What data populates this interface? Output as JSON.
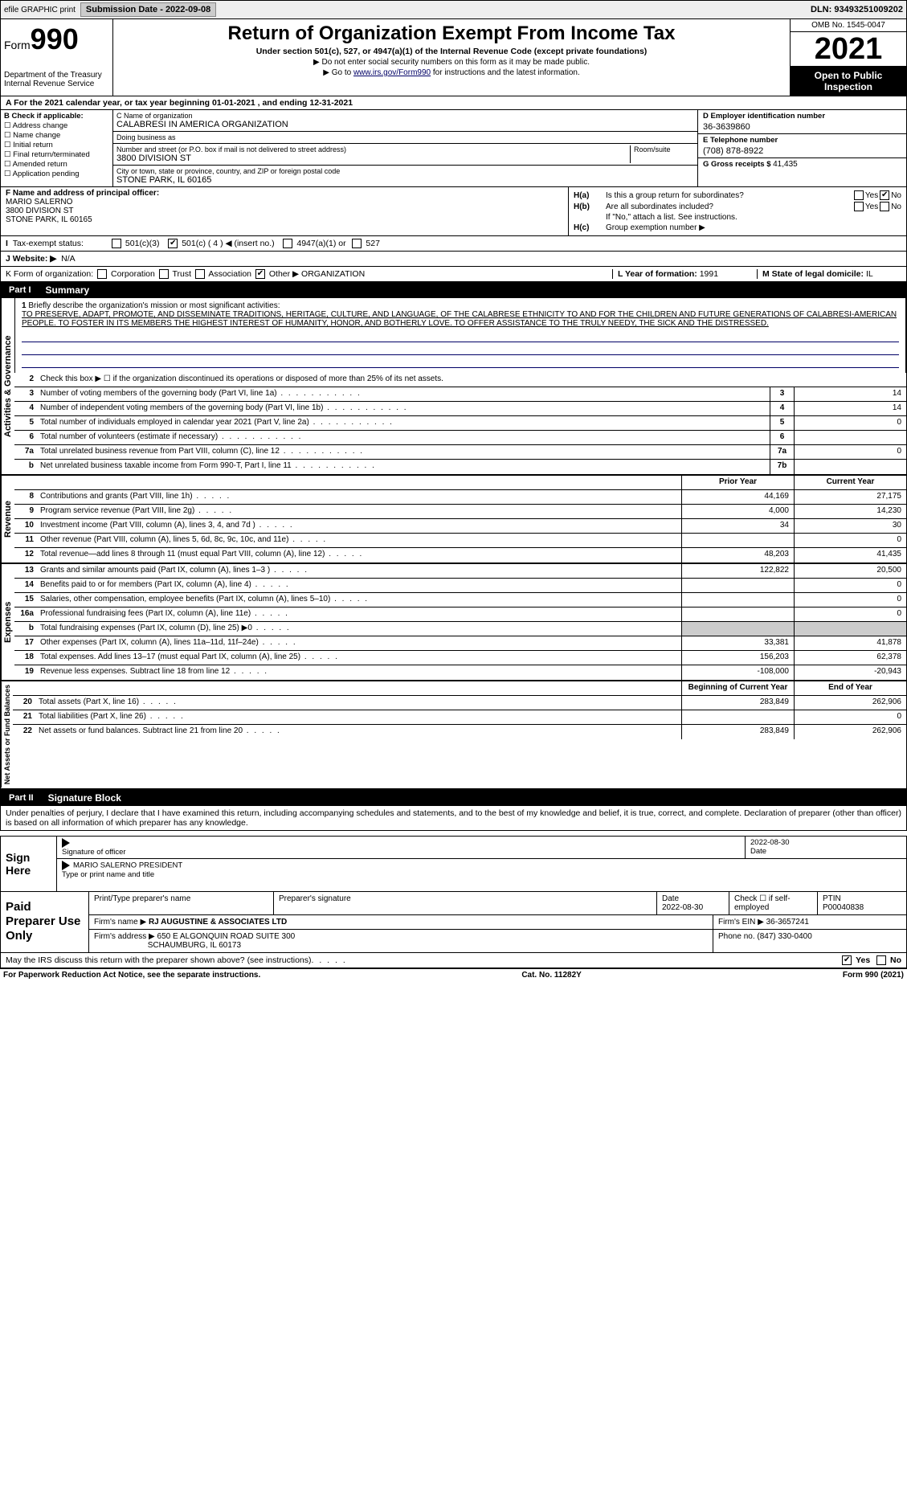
{
  "topbar": {
    "efile": "efile GRAPHIC print",
    "submission_label": "Submission Date - 2022-09-08",
    "dln": "DLN: 93493251009202"
  },
  "header": {
    "form_prefix": "Form",
    "form_number": "990",
    "title": "Return of Organization Exempt From Income Tax",
    "subtitle": "Under section 501(c), 527, or 4947(a)(1) of the Internal Revenue Code (except private foundations)",
    "note1": "▶ Do not enter social security numbers on this form as it may be made public.",
    "note2_pre": "▶ Go to ",
    "note2_link": "www.irs.gov/Form990",
    "note2_post": " for instructions and the latest information.",
    "dept": "Department of the Treasury",
    "irs": "Internal Revenue Service",
    "omb": "OMB No. 1545-0047",
    "year": "2021",
    "open": "Open to Public Inspection"
  },
  "period": {
    "label_a": "A For the 2021 calendar year, or tax year beginning ",
    "begin": "01-01-2021",
    "mid": " , and ending ",
    "end": "12-31-2021"
  },
  "blockB": {
    "label": "B Check if applicable:",
    "opts": [
      "Address change",
      "Name change",
      "Initial return",
      "Final return/terminated",
      "Amended return",
      "Application pending"
    ]
  },
  "blockC": {
    "name_label": "C Name of organization",
    "name": "CALABRESI IN AMERICA ORGANIZATION",
    "dba_label": "Doing business as",
    "dba": "",
    "street_label": "Number and street (or P.O. box if mail is not delivered to street address)",
    "room_label": "Room/suite",
    "street": "3800 DIVISION ST",
    "city_label": "City or town, state or province, country, and ZIP or foreign postal code",
    "city": "STONE PARK, IL  60165"
  },
  "blockD": {
    "ein_label": "D Employer identification number",
    "ein": "36-3639860",
    "phone_label": "E Telephone number",
    "phone": "(708) 878-8922",
    "gross_label": "G Gross receipts $ ",
    "gross": "41,435"
  },
  "blockF": {
    "label": "F Name and address of principal officer:",
    "name": "MARIO SALERNO",
    "street": "3800 DIVISION ST",
    "city": "STONE PARK, IL  60165"
  },
  "blockH": {
    "a_label": "H(a)",
    "a_q": "Is this a group return for subordinates?",
    "a_no_checked": true,
    "b_label": "H(b)",
    "b_q": "Are all subordinates included?",
    "b_note": "If \"No,\" attach a list. See instructions.",
    "c_label": "H(c)",
    "c_q": "Group exemption number ▶"
  },
  "tax_exempt": {
    "label": "Tax-exempt status:",
    "c3": "501(c)(3)",
    "c_other_checked": true,
    "c_other": "501(c) ( 4 ) ◀ (insert no.)",
    "a1": "4947(a)(1) or",
    "s527": "527"
  },
  "website": {
    "label": "J   Website: ▶",
    "val": "N/A"
  },
  "blockK": {
    "label": "K Form of organization:",
    "corp": "Corporation",
    "trust": "Trust",
    "assoc": "Association",
    "other_checked": true,
    "other": "Other ▶",
    "other_val": "ORGANIZATION"
  },
  "blockL": {
    "label": "L Year of formation: ",
    "val": "1991"
  },
  "blockM": {
    "label": "M State of legal domicile: ",
    "val": "IL"
  },
  "part1": {
    "tab": "Part I",
    "title": "Summary"
  },
  "mission": {
    "num": "1",
    "label": "Briefly describe the organization's mission or most significant activities:",
    "text": "TO PRESERVE, ADAPT, PROMOTE, AND DISSEMINATE TRADITIONS, HERITAGE, CULTURE, AND LANGUAGE, OF THE CALABRESE ETHNICITY TO AND FOR THE CHILDREN AND FUTURE GENERATIONS OF CALABRESI-AMERICAN PEOPLE. TO FOSTER IN ITS MEMBERS THE HIGHEST INTEREST OF HUMANITY, HONOR, AND BOTHERLY LOVE. TO OFFER ASSISTANCE TO THE TRULY NEEDY, THE SICK AND THE DISTRESSED."
  },
  "gov": {
    "vert": "Activities & Governance",
    "line2": "Check this box ▶ ☐ if the organization discontinued its operations or disposed of more than 25% of its net assets.",
    "rows": [
      {
        "n": "3",
        "d": "Number of voting members of the governing body (Part VI, line 1a)",
        "box": "3",
        "v": "14"
      },
      {
        "n": "4",
        "d": "Number of independent voting members of the governing body (Part VI, line 1b)",
        "box": "4",
        "v": "14"
      },
      {
        "n": "5",
        "d": "Total number of individuals employed in calendar year 2021 (Part V, line 2a)",
        "box": "5",
        "v": "0"
      },
      {
        "n": "6",
        "d": "Total number of volunteers (estimate if necessary)",
        "box": "6",
        "v": ""
      },
      {
        "n": "7a",
        "d": "Total unrelated business revenue from Part VIII, column (C), line 12",
        "box": "7a",
        "v": "0"
      },
      {
        "n": "b",
        "d": "Net unrelated business taxable income from Form 990-T, Part I, line 11",
        "box": "7b",
        "v": ""
      }
    ]
  },
  "rev": {
    "vert": "Revenue",
    "hdr_prior": "Prior Year",
    "hdr_curr": "Current Year",
    "rows": [
      {
        "n": "8",
        "d": "Contributions and grants (Part VIII, line 1h)",
        "p": "44,169",
        "c": "27,175"
      },
      {
        "n": "9",
        "d": "Program service revenue (Part VIII, line 2g)",
        "p": "4,000",
        "c": "14,230"
      },
      {
        "n": "10",
        "d": "Investment income (Part VIII, column (A), lines 3, 4, and 7d )",
        "p": "34",
        "c": "30"
      },
      {
        "n": "11",
        "d": "Other revenue (Part VIII, column (A), lines 5, 6d, 8c, 9c, 10c, and 11e)",
        "p": "",
        "c": "0"
      },
      {
        "n": "12",
        "d": "Total revenue—add lines 8 through 11 (must equal Part VIII, column (A), line 12)",
        "p": "48,203",
        "c": "41,435"
      }
    ]
  },
  "exp": {
    "vert": "Expenses",
    "rows": [
      {
        "n": "13",
        "d": "Grants and similar amounts paid (Part IX, column (A), lines 1–3 )",
        "p": "122,822",
        "c": "20,500"
      },
      {
        "n": "14",
        "d": "Benefits paid to or for members (Part IX, column (A), line 4)",
        "p": "",
        "c": "0"
      },
      {
        "n": "15",
        "d": "Salaries, other compensation, employee benefits (Part IX, column (A), lines 5–10)",
        "p": "",
        "c": "0"
      },
      {
        "n": "16a",
        "d": "Professional fundraising fees (Part IX, column (A), line 11e)",
        "p": "",
        "c": "0"
      },
      {
        "n": "b",
        "d": "Total fundraising expenses (Part IX, column (D), line 25) ▶0",
        "p": "shade",
        "c": "shade"
      },
      {
        "n": "17",
        "d": "Other expenses (Part IX, column (A), lines 11a–11d, 11f–24e)",
        "p": "33,381",
        "c": "41,878"
      },
      {
        "n": "18",
        "d": "Total expenses. Add lines 13–17 (must equal Part IX, column (A), line 25)",
        "p": "156,203",
        "c": "62,378"
      },
      {
        "n": "19",
        "d": "Revenue less expenses. Subtract line 18 from line 12",
        "p": "-108,000",
        "c": "-20,943"
      }
    ]
  },
  "net": {
    "vert": "Net Assets or Fund Balances",
    "hdr_begin": "Beginning of Current Year",
    "hdr_end": "End of Year",
    "rows": [
      {
        "n": "20",
        "d": "Total assets (Part X, line 16)",
        "p": "283,849",
        "c": "262,906"
      },
      {
        "n": "21",
        "d": "Total liabilities (Part X, line 26)",
        "p": "",
        "c": "0"
      },
      {
        "n": "22",
        "d": "Net assets or fund balances. Subtract line 21 from line 20",
        "p": "283,849",
        "c": "262,906"
      }
    ]
  },
  "part2": {
    "tab": "Part II",
    "title": "Signature Block"
  },
  "sig_decl": "Under penalties of perjury, I declare that I have examined this return, including accompanying schedules and statements, and to the best of my knowledge and belief, it is true, correct, and complete. Declaration of preparer (other than officer) is based on all information of which preparer has any knowledge.",
  "sign": {
    "label": "Sign Here",
    "sig_label": "Signature of officer",
    "date_val": "2022-08-30",
    "date_label": "Date",
    "name": "MARIO SALERNO  PRESIDENT",
    "name_label": "Type or print name and title"
  },
  "prep": {
    "label": "Paid Preparer Use Only",
    "h1": "Print/Type preparer's name",
    "h2": "Preparer's signature",
    "h3": "Date",
    "h3v": "2022-08-30",
    "h4": "Check ☐ if self-employed",
    "h5": "PTIN",
    "h5v": "P00040838",
    "firm_label": "Firm's name    ▶",
    "firm": "RJ AUGUSTINE & ASSOCIATES LTD",
    "ein_label": "Firm's EIN ▶",
    "ein": "36-3657241",
    "addr_label": "Firm's address ▶",
    "addr1": "650 E ALGONQUIN ROAD SUITE 300",
    "addr2": "SCHAUMBURG, IL  60173",
    "phone_label": "Phone no. ",
    "phone": "(847) 330-0400"
  },
  "discuss": {
    "q": "May the IRS discuss this return with the preparer shown above? (see instructions)",
    "yes_checked": true
  },
  "footer": {
    "left": "For Paperwork Reduction Act Notice, see the separate instructions.",
    "mid": "Cat. No. 11282Y",
    "right": "Form 990 (2021)"
  }
}
